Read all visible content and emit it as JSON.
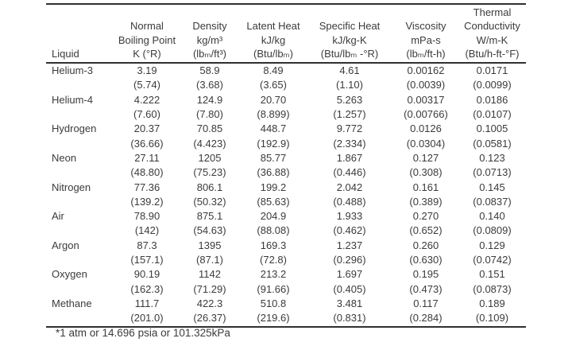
{
  "table": {
    "columns": [
      {
        "id": "liquid",
        "lines": [
          "Liquid"
        ]
      },
      {
        "id": "boiling-point",
        "lines": [
          "Normal",
          "Boiling Point",
          "K (°R)"
        ]
      },
      {
        "id": "density",
        "lines": [
          "Density",
          "kg/m³",
          "(lbₘ/ft³)"
        ]
      },
      {
        "id": "latent-heat",
        "lines": [
          "Latent Heat",
          "kJ/kg",
          "(Btu/lbₘ)"
        ]
      },
      {
        "id": "specific-heat",
        "lines": [
          "Specific Heat",
          "kJ/kg-K",
          "(Btu/lbₘ -°R)"
        ]
      },
      {
        "id": "viscosity",
        "lines": [
          "Viscosity",
          "mPa-s",
          "(lbₘ/ft-h)"
        ]
      },
      {
        "id": "thermal-conductivity",
        "lines": [
          "Thermal",
          "Conductivity",
          "W/m-K",
          "(Btu/h-ft-°F)"
        ]
      }
    ],
    "rows": [
      {
        "liquid": "Helium-3",
        "si": [
          "3.19",
          "58.9",
          "8.49",
          "4.61",
          "0.00162",
          "0.0171"
        ],
        "imperial": [
          "(5.74)",
          "(3.68)",
          "(3.65)",
          "(1.10)",
          "(0.0039)",
          "(0.0099)"
        ]
      },
      {
        "liquid": "Helium-4",
        "si": [
          "4.222",
          "124.9",
          "20.70",
          "5.263",
          "0.00317",
          "0.0186"
        ],
        "imperial": [
          "(7.60)",
          "(7.80)",
          "(8.899)",
          "(1.257)",
          "(0.00766)",
          "(0.0107)"
        ]
      },
      {
        "liquid": "Hydrogen",
        "si": [
          "20.37",
          "70.85",
          "448.7",
          "9.772",
          "0.0126",
          "0.1005"
        ],
        "imperial": [
          "(36.66)",
          "(4.423)",
          "(192.9)",
          "(2.334)",
          "(0.0304)",
          "(0.0581)"
        ]
      },
      {
        "liquid": "Neon",
        "si": [
          "27.11",
          "1205",
          "85.77",
          "1.867",
          "0.127",
          "0.123"
        ],
        "imperial": [
          "(48.80)",
          "(75.23)",
          "(36.88)",
          "(0.446)",
          "(0.308)",
          "(0.0713)"
        ]
      },
      {
        "liquid": "Nitrogen",
        "si": [
          "77.36",
          "806.1",
          "199.2",
          "2.042",
          "0.161",
          "0.145"
        ],
        "imperial": [
          "(139.2)",
          "(50.32)",
          "(85.63)",
          "(0.488)",
          "(0.389)",
          "(0.0837)"
        ]
      },
      {
        "liquid": "Air",
        "si": [
          "78.90",
          "875.1",
          "204.9",
          "1.933",
          "0.270",
          "0.140"
        ],
        "imperial": [
          "(142)",
          "(54.63)",
          "(88.08)",
          "(0.462)",
          "(0.652)",
          "(0.0809)"
        ]
      },
      {
        "liquid": "Argon",
        "si": [
          "87.3",
          "1395",
          "169.3",
          "1.237",
          "0.260",
          "0.129"
        ],
        "imperial": [
          "(157.1)",
          "(87.1)",
          "(72.8)",
          "(0.296)",
          "(0.630)",
          "(0.0742)"
        ]
      },
      {
        "liquid": "Oxygen",
        "si": [
          "90.19",
          "1142",
          "213.2",
          "1.697",
          "0.195",
          "0.151"
        ],
        "imperial": [
          "(162.3)",
          "(71.29)",
          "(91.66)",
          "(0.405)",
          "(0.473)",
          "(0.0873)"
        ]
      },
      {
        "liquid": "Methane",
        "si": [
          "111.7",
          "422.3",
          "510.8",
          "3.481",
          "0.117",
          "0.189"
        ],
        "imperial": [
          "(201.0)",
          "(26.37)",
          "(219.6)",
          "(0.831)",
          "(0.284)",
          "(0.109)"
        ]
      }
    ],
    "footnote": "*1 atm or 14.696 psia or 101.325kPa",
    "colors": {
      "text": "#3b3b3b",
      "rule": "#303030",
      "background": "#ffffff"
    }
  }
}
